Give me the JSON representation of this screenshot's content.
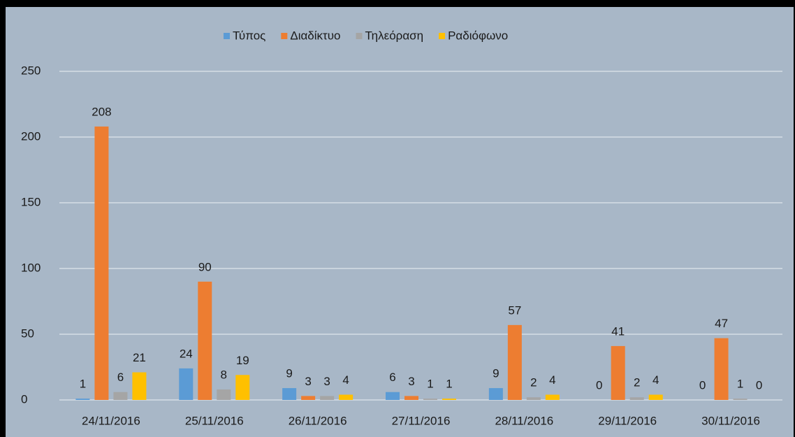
{
  "chart_data": {
    "type": "bar",
    "categories": [
      "24/11/2016",
      "25/11/2016",
      "26/11/2016",
      "27/11/2016",
      "28/11/2016",
      "29/11/2016",
      "30/11/2016"
    ],
    "series": [
      {
        "name": "Τύπος",
        "color": "#5b9bd5",
        "values": [
          1,
          24,
          9,
          6,
          9,
          0,
          0
        ]
      },
      {
        "name": "Διαδίκτυο",
        "color": "#ed7d31",
        "values": [
          208,
          90,
          3,
          3,
          57,
          41,
          47
        ]
      },
      {
        "name": "Τηλεόραση",
        "color": "#a5a5a5",
        "values": [
          6,
          8,
          3,
          1,
          2,
          2,
          1
        ]
      },
      {
        "name": "Ραδιόφωνο",
        "color": "#ffc000",
        "values": [
          21,
          19,
          4,
          1,
          4,
          4,
          0
        ]
      }
    ],
    "ylim": [
      0,
      250
    ],
    "yticks": [
      0,
      50,
      100,
      150,
      200,
      250
    ],
    "grid": true,
    "legend": "top"
  }
}
